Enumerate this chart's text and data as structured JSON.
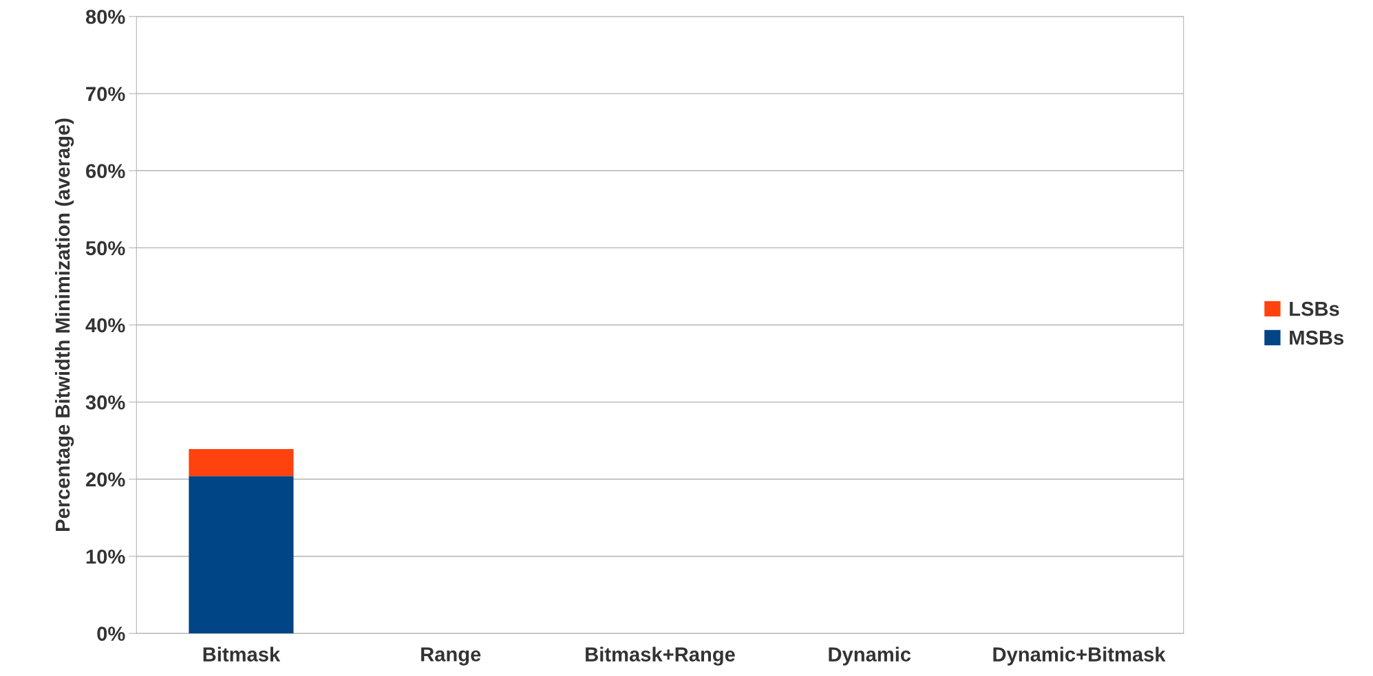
{
  "chart_data": {
    "type": "bar",
    "stacked": true,
    "ylabel": "Percentage Bitwidth Minimization (average)",
    "categories": [
      "Bitmask",
      "Range",
      "Bitmask+Range",
      "Dynamic",
      "Dynamic+Bitmask"
    ],
    "series": [
      {
        "name": "MSBs",
        "color": "#004586",
        "values": [
          20.4,
          null,
          null,
          null,
          null
        ]
      },
      {
        "name": "LSBs",
        "color": "#ff420e",
        "values": [
          3.5,
          null,
          null,
          null,
          null
        ]
      }
    ],
    "ylim": [
      0,
      80
    ],
    "yticks": [
      {
        "value": 0,
        "label": "0%"
      },
      {
        "value": 10,
        "label": "10%"
      },
      {
        "value": 20,
        "label": "20%"
      },
      {
        "value": 30,
        "label": "30%"
      },
      {
        "value": 40,
        "label": "40%"
      },
      {
        "value": 50,
        "label": "50%"
      },
      {
        "value": 60,
        "label": "60%"
      },
      {
        "value": 70,
        "label": "70%"
      },
      {
        "value": 80,
        "label": "80%"
      }
    ],
    "grid": "y",
    "legend": "right"
  }
}
